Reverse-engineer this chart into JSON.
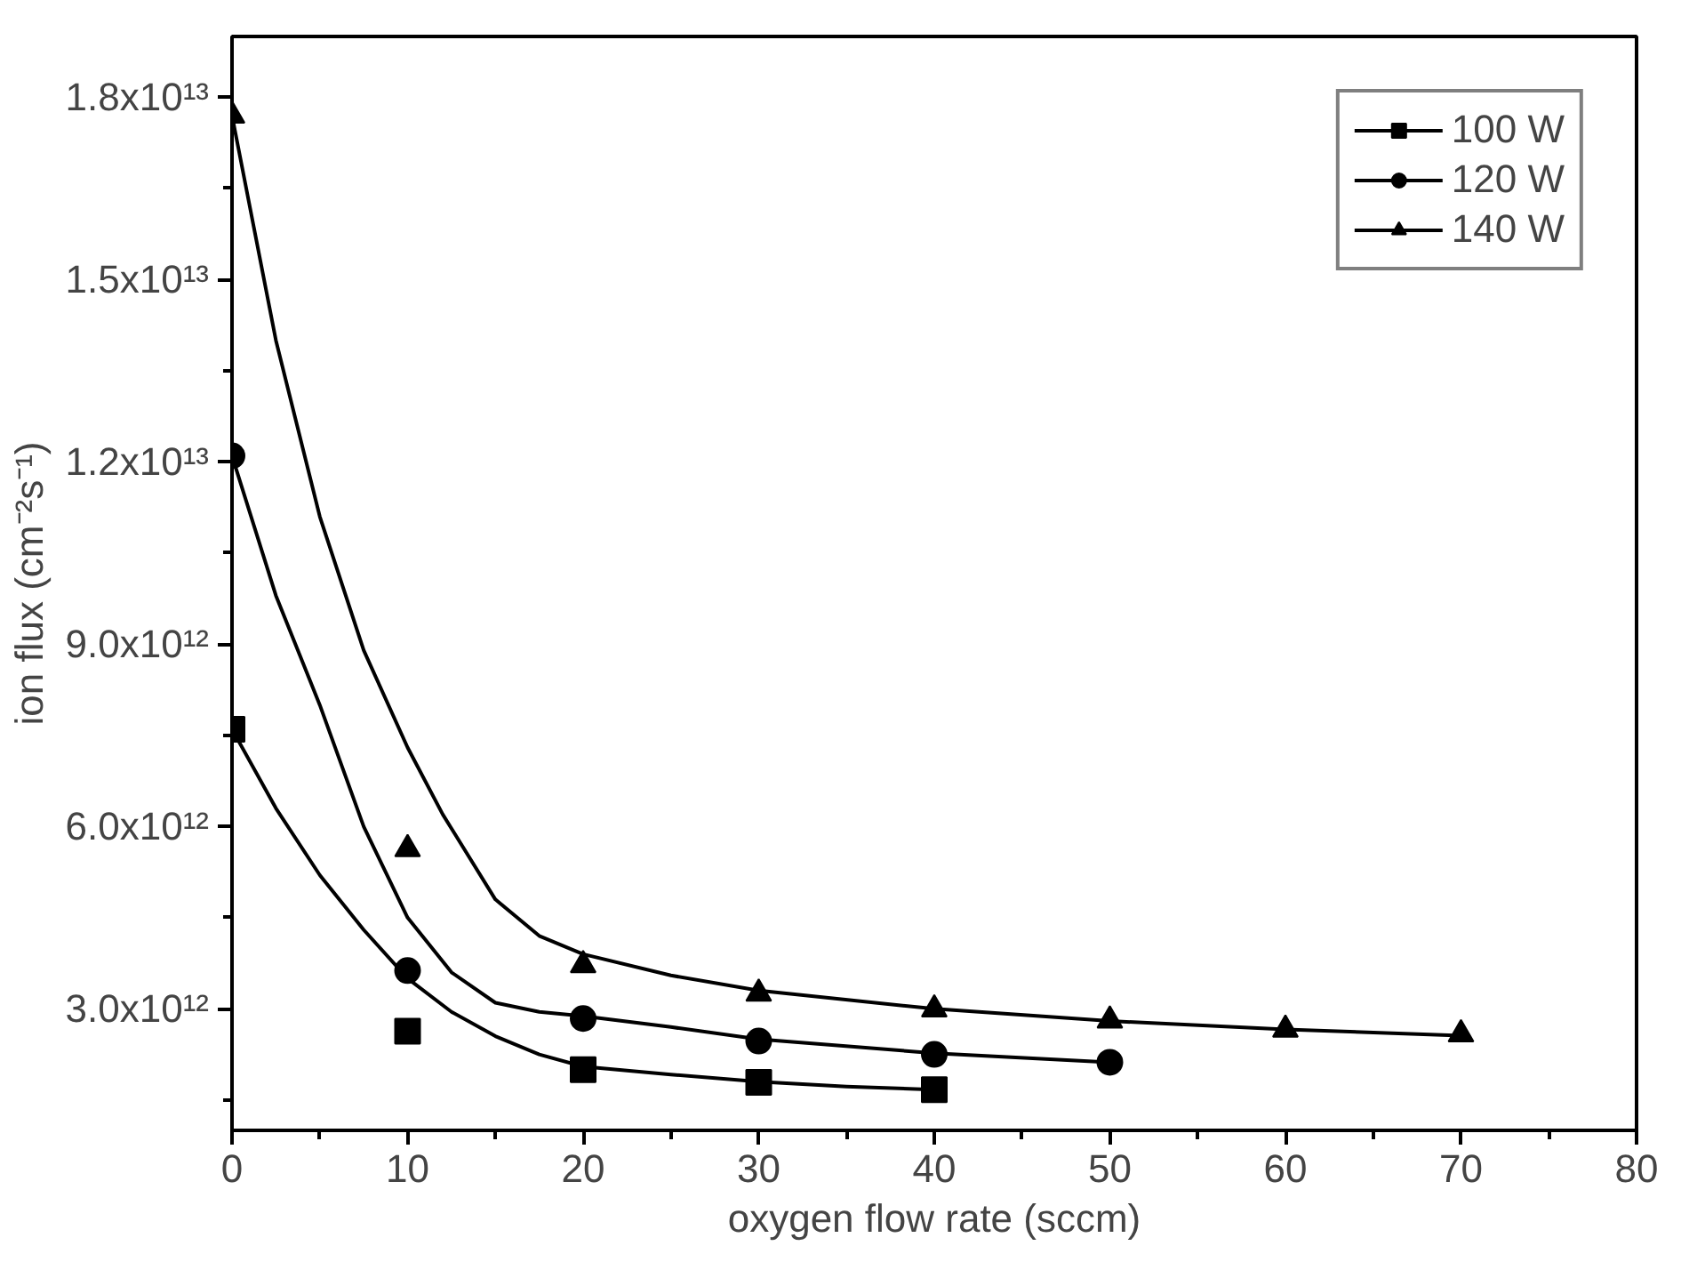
{
  "chart_data": {
    "type": "scatter",
    "xlabel": "oxygen flow rate (sccm)",
    "ylabel": "ion flux (cm⁻²s⁻¹)",
    "xlim": [
      0,
      80
    ],
    "xticks": [
      0,
      10,
      20,
      30,
      40,
      50,
      60,
      70,
      80
    ],
    "ylim": [
      1000000000000.0,
      19000000000000.0
    ],
    "yticks": [
      {
        "value": 3000000000000.0,
        "label": "3.0x10¹²"
      },
      {
        "value": 6000000000000.0,
        "label": "6.0x10¹²"
      },
      {
        "value": 9000000000000.0,
        "label": "9.0x10¹²"
      },
      {
        "value": 12000000000000.0,
        "label": "1.2x10¹³"
      },
      {
        "value": 15000000000000.0,
        "label": "1.5x10¹³"
      },
      {
        "value": 18000000000000.0,
        "label": "1.8x10¹³"
      }
    ],
    "grid": false,
    "legend": "top right",
    "series": [
      {
        "name": "100 W",
        "marker": "square",
        "color": "#000000",
        "x": [
          0,
          10,
          20,
          30,
          40
        ],
        "values": [
          7600000000000.0,
          2630000000000.0,
          2000000000000.0,
          1790000000000.0,
          1670000000000.0
        ]
      },
      {
        "name": "120 W",
        "marker": "circle",
        "color": "#000000",
        "x": [
          0,
          10,
          20,
          30,
          40,
          50
        ],
        "values": [
          12100000000000.0,
          3630000000000.0,
          2840000000000.0,
          2470000000000.0,
          2250000000000.0,
          2120000000000.0
        ]
      },
      {
        "name": "140 W",
        "marker": "triangle",
        "color": "#000000",
        "x": [
          0,
          10,
          20,
          30,
          40,
          50,
          60,
          70
        ],
        "values": [
          17700000000000.0,
          5630000000000.0,
          3720000000000.0,
          3250000000000.0,
          2990000000000.0,
          2810000000000.0,
          2660000000000.0,
          2580000000000.0
        ]
      },
      {
        "type": "line",
        "color": "#000000",
        "line_style": "solid",
        "x": [
          0,
          2.5,
          5,
          7.5,
          10,
          12.5,
          15,
          17.5,
          20,
          25,
          30,
          35,
          40
        ],
        "values": [
          7600000000000.0,
          6300000000000.0,
          5200000000000.0,
          4300000000000.0,
          3500000000000.0,
          2950000000000.0,
          2550000000000.0,
          2250000000000.0,
          2050000000000.0,
          1920000000000.0,
          1800000000000.0,
          1720000000000.0,
          1670000000000.0
        ]
      },
      {
        "type": "line",
        "color": "#000000",
        "line_style": "solid",
        "x": [
          0,
          2.5,
          5,
          7.5,
          10,
          12.5,
          15,
          17.5,
          20,
          25,
          30,
          40,
          50
        ],
        "values": [
          12100000000000.0,
          9800000000000.0,
          8000000000000.0,
          6000000000000.0,
          4500000000000.0,
          3600000000000.0,
          3100000000000.0,
          2950000000000.0,
          2880000000000.0,
          2700000000000.0,
          2500000000000.0,
          2270000000000.0,
          2120000000000.0
        ]
      },
      {
        "type": "line",
        "color": "#000000",
        "line_style": "solid",
        "x": [
          0,
          2.5,
          5,
          7.5,
          10,
          12,
          15,
          17.5,
          20,
          25,
          30,
          40,
          50,
          60,
          70
        ],
        "values": [
          17700000000000.0,
          14000000000000.0,
          11100000000000.0,
          8900000000000.0,
          7300000000000.0,
          6200000000000.0,
          4800000000000.0,
          4200000000000.0,
          3900000000000.0,
          3550000000000.0,
          3300000000000.0,
          3000000000000.0,
          2800000000000.0,
          2660000000000.0,
          2560000000000.0
        ]
      }
    ]
  }
}
